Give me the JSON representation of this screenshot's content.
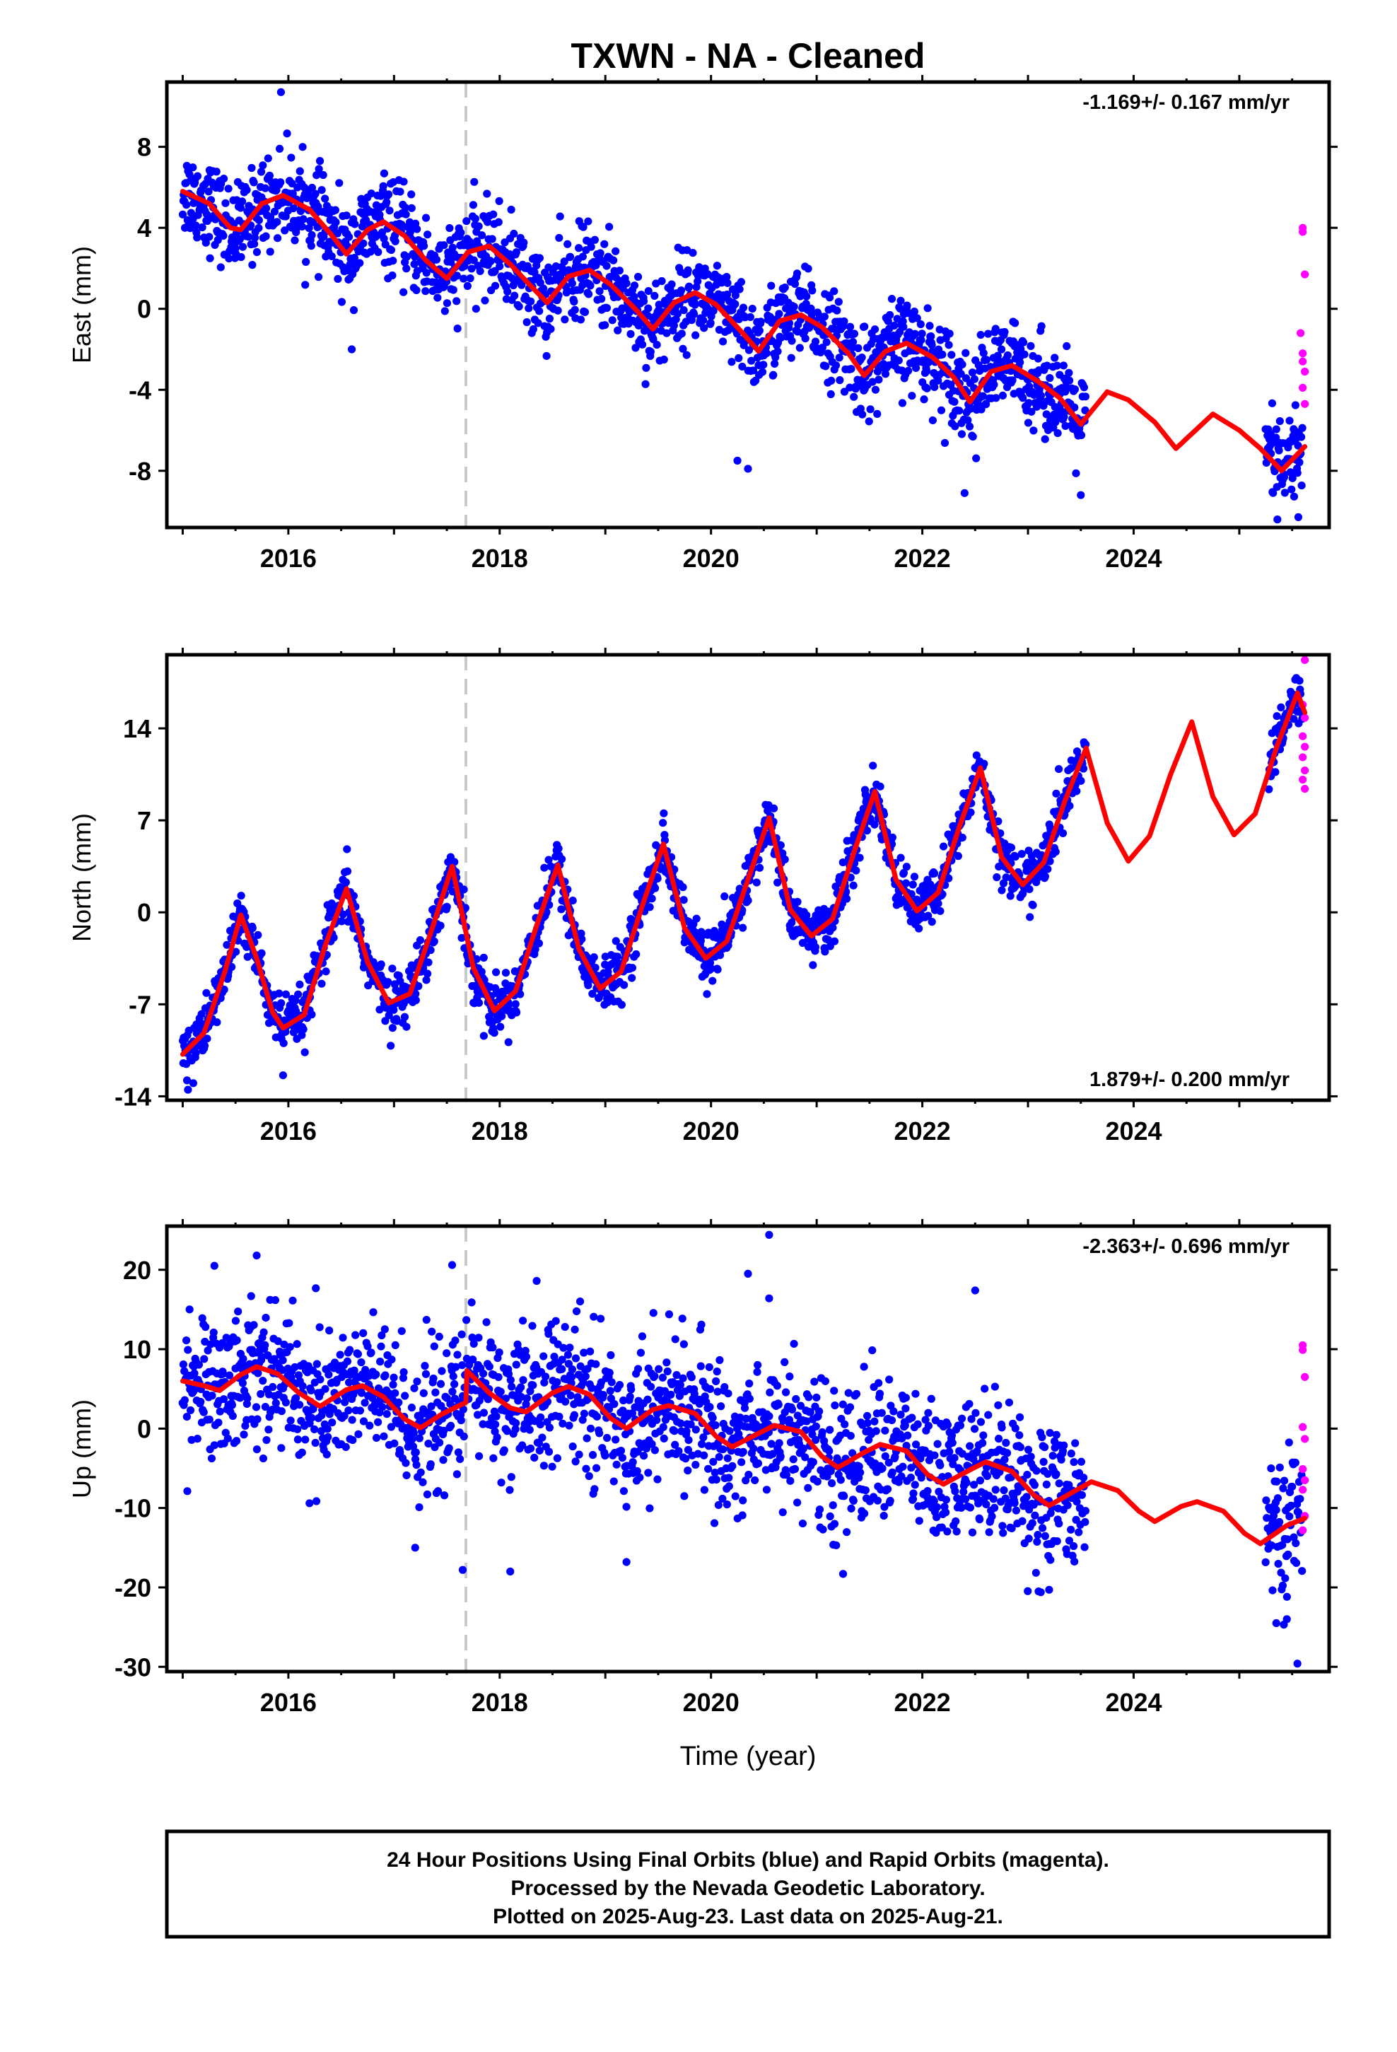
{
  "title": "TXWN  - NA - Cleaned",
  "footer": {
    "lines": [
      "24 Hour Positions Using Final Orbits (blue) and Rapid Orbits (magenta).",
      "Processed by the Nevada Geodetic Laboratory.",
      "Plotted on 2025-Aug-23. Last data on 2025-Aug-21."
    ]
  },
  "colors": {
    "final_orbits": "#0000ff",
    "rapid_orbits": "#ff00ff",
    "model_fit": "#ff0000",
    "event_line": "#c8c8c8"
  },
  "chart_data": [
    {
      "type": "scatter",
      "component": "east",
      "ylabel": "East (mm)",
      "xlabel": "",
      "xlim": [
        2014.85,
        2025.85
      ],
      "ylim": [
        -10.8,
        11.2
      ],
      "x_ticks": [
        "2016",
        "2018",
        "2020",
        "2022",
        "2024"
      ],
      "y_ticks": [
        "8",
        "4",
        "0",
        "-4",
        "-8"
      ],
      "y_tick_values": [
        8,
        4,
        0,
        -4,
        -8
      ],
      "rate_label": "-1.169+/- 0.167 mm/yr",
      "rate_position": "top-right",
      "event_line_x": 2017.68,
      "series": [
        {
          "role": "final-orbits",
          "color": "#0000ff",
          "x_range": [
            2015.0,
            2023.55
          ],
          "noise_sd": 1.1,
          "outliers": [
            [
              2015.93,
              10.7
            ],
            [
              2016.6,
              -2.0
            ],
            [
              2020.35,
              -7.9
            ],
            [
              2020.25,
              -7.5
            ],
            [
              2022.4,
              -9.1
            ],
            [
              2023.5,
              -9.2
            ]
          ]
        },
        {
          "role": "final-orbits",
          "color": "#0000ff",
          "x_range": [
            2025.25,
            2025.6
          ],
          "noise_sd": 1.3
        },
        {
          "role": "rapid-orbits",
          "color": "#ff00ff",
          "points": [
            [
              2025.6,
              4.0
            ],
            [
              2025.6,
              3.8
            ],
            [
              2025.62,
              1.7
            ],
            [
              2025.58,
              -1.2
            ],
            [
              2025.6,
              -2.2
            ],
            [
              2025.6,
              -2.6
            ],
            [
              2025.62,
              -3.1
            ],
            [
              2025.6,
              -3.9
            ],
            [
              2025.62,
              -4.7
            ]
          ]
        }
      ],
      "model_fit": {
        "color": "#ff0000",
        "x_range": [
          2015.0,
          2025.62
        ],
        "curve": [
          [
            2015.0,
            5.8
          ],
          [
            2015.25,
            5.2
          ],
          [
            2015.45,
            4.0
          ],
          [
            2015.55,
            3.9
          ],
          [
            2015.75,
            5.2
          ],
          [
            2015.95,
            5.6
          ],
          [
            2016.2,
            4.9
          ],
          [
            2016.4,
            3.7
          ],
          [
            2016.55,
            2.7
          ],
          [
            2016.75,
            3.9
          ],
          [
            2016.9,
            4.3
          ],
          [
            2017.1,
            3.6
          ],
          [
            2017.3,
            2.4
          ],
          [
            2017.5,
            1.5
          ],
          [
            2017.7,
            2.8
          ],
          [
            2017.9,
            3.1
          ],
          [
            2018.1,
            2.2
          ],
          [
            2018.3,
            1.1
          ],
          [
            2018.45,
            0.3
          ],
          [
            2018.65,
            1.6
          ],
          [
            2018.85,
            1.9
          ],
          [
            2019.05,
            1.2
          ],
          [
            2019.3,
            -0.1
          ],
          [
            2019.45,
            -1.0
          ],
          [
            2019.65,
            0.3
          ],
          [
            2019.85,
            0.8
          ],
          [
            2020.05,
            0.2
          ],
          [
            2020.3,
            -1.2
          ],
          [
            2020.45,
            -2.1
          ],
          [
            2020.65,
            -0.6
          ],
          [
            2020.85,
            -0.3
          ],
          [
            2021.05,
            -0.9
          ],
          [
            2021.3,
            -2.2
          ],
          [
            2021.45,
            -3.3
          ],
          [
            2021.65,
            -2.1
          ],
          [
            2021.85,
            -1.7
          ],
          [
            2022.1,
            -2.4
          ],
          [
            2022.3,
            -3.4
          ],
          [
            2022.45,
            -4.6
          ],
          [
            2022.65,
            -3.1
          ],
          [
            2022.85,
            -2.8
          ],
          [
            2023.1,
            -3.6
          ],
          [
            2023.3,
            -4.4
          ],
          [
            2023.5,
            -5.7
          ],
          [
            2023.75,
            -4.1
          ],
          [
            2023.95,
            -4.5
          ],
          [
            2024.2,
            -5.6
          ],
          [
            2024.4,
            -6.9
          ],
          [
            2024.75,
            -5.2
          ],
          [
            2025.0,
            -6.0
          ],
          [
            2025.2,
            -6.9
          ],
          [
            2025.4,
            -8.0
          ],
          [
            2025.62,
            -6.8
          ]
        ]
      }
    },
    {
      "type": "scatter",
      "component": "north",
      "ylabel": "North (mm)",
      "xlabel": "",
      "xlim": [
        2014.85,
        2025.85
      ],
      "ylim": [
        -14.3,
        19.6
      ],
      "x_ticks": [
        "2016",
        "2018",
        "2020",
        "2022",
        "2024"
      ],
      "y_ticks": [
        "14",
        "7",
        "0",
        "-7",
        "-14"
      ],
      "y_tick_values": [
        14,
        7,
        0,
        -7,
        -14
      ],
      "rate_label": "1.879+/- 0.200 mm/yr",
      "rate_position": "bottom-right",
      "event_line_x": 2017.68,
      "series": [
        {
          "role": "final-orbits",
          "color": "#0000ff",
          "x_range": [
            2015.0,
            2023.55
          ],
          "noise_sd": 1.0,
          "outliers": [
            [
              2015.05,
              -13.5
            ],
            [
              2015.1,
              -13.0
            ],
            [
              2015.95,
              -12.4
            ],
            [
              2017.85,
              -9.4
            ]
          ]
        },
        {
          "role": "final-orbits",
          "color": "#0000ff",
          "x_range": [
            2025.28,
            2025.6
          ],
          "noise_sd": 0.9
        },
        {
          "role": "rapid-orbits",
          "color": "#ff00ff",
          "points": [
            [
              2025.62,
              19.2
            ],
            [
              2025.6,
              15.8
            ],
            [
              2025.62,
              14.8
            ],
            [
              2025.6,
              13.4
            ],
            [
              2025.62,
              12.6
            ],
            [
              2025.6,
              11.8
            ],
            [
              2025.62,
              10.8
            ],
            [
              2025.6,
              10.1
            ],
            [
              2025.62,
              9.4
            ]
          ]
        }
      ],
      "model_fit": {
        "color": "#ff0000",
        "x_range": [
          2015.0,
          2025.62
        ],
        "curve": [
          [
            2015.0,
            -10.8
          ],
          [
            2015.2,
            -9.2
          ],
          [
            2015.4,
            -4.5
          ],
          [
            2015.55,
            -0.2
          ],
          [
            2015.7,
            -3.5
          ],
          [
            2015.85,
            -7.6
          ],
          [
            2015.95,
            -8.8
          ],
          [
            2016.15,
            -7.8
          ],
          [
            2016.35,
            -2.5
          ],
          [
            2016.55,
            1.8
          ],
          [
            2016.75,
            -3.8
          ],
          [
            2016.95,
            -6.9
          ],
          [
            2017.15,
            -6.2
          ],
          [
            2017.35,
            -1.5
          ],
          [
            2017.55,
            3.5
          ],
          [
            2017.75,
            -4.2
          ],
          [
            2017.95,
            -7.5
          ],
          [
            2018.15,
            -6.0
          ],
          [
            2018.35,
            -1.0
          ],
          [
            2018.55,
            3.6
          ],
          [
            2018.75,
            -2.8
          ],
          [
            2018.95,
            -5.8
          ],
          [
            2019.15,
            -4.5
          ],
          [
            2019.35,
            0.5
          ],
          [
            2019.55,
            5.2
          ],
          [
            2019.75,
            -1.2
          ],
          [
            2019.95,
            -3.5
          ],
          [
            2020.15,
            -2.2
          ],
          [
            2020.35,
            2.5
          ],
          [
            2020.55,
            7.2
          ],
          [
            2020.75,
            0.2
          ],
          [
            2020.95,
            -1.8
          ],
          [
            2021.15,
            -0.5
          ],
          [
            2021.35,
            4.5
          ],
          [
            2021.55,
            9.2
          ],
          [
            2021.75,
            2.5
          ],
          [
            2021.95,
            0.1
          ],
          [
            2022.15,
            1.5
          ],
          [
            2022.35,
            6.5
          ],
          [
            2022.55,
            11.0
          ],
          [
            2022.75,
            4.2
          ],
          [
            2022.95,
            2.1
          ],
          [
            2023.15,
            3.8
          ],
          [
            2023.35,
            8.5
          ],
          [
            2023.55,
            12.5
          ],
          [
            2023.75,
            6.8
          ],
          [
            2023.95,
            3.9
          ],
          [
            2024.15,
            5.8
          ],
          [
            2024.35,
            10.5
          ],
          [
            2024.55,
            14.5
          ],
          [
            2024.75,
            8.8
          ],
          [
            2024.95,
            5.9
          ],
          [
            2025.15,
            7.5
          ],
          [
            2025.35,
            12.5
          ],
          [
            2025.55,
            16.7
          ],
          [
            2025.62,
            15.2
          ]
        ]
      }
    },
    {
      "type": "scatter",
      "component": "up",
      "ylabel": "Up (mm)",
      "xlabel": "Time (year)",
      "xlim": [
        2014.85,
        2025.85
      ],
      "ylim": [
        -30.6,
        25.5
      ],
      "x_ticks": [
        "2016",
        "2018",
        "2020",
        "2022",
        "2024"
      ],
      "y_ticks": [
        "20",
        "10",
        "0",
        "-10",
        "-20",
        "-30"
      ],
      "y_tick_values": [
        20,
        10,
        0,
        -10,
        -20,
        -30
      ],
      "rate_label": "-2.363+/- 0.696 mm/yr",
      "rate_position": "top-right",
      "event_line_x": 2017.68,
      "series": [
        {
          "role": "final-orbits",
          "color": "#0000ff",
          "x_range": [
            2015.0,
            2023.55
          ],
          "noise_sd": 4.4,
          "outliers": [
            [
              2015.3,
              20.5
            ],
            [
              2015.7,
              21.8
            ],
            [
              2016.2,
              -9.4
            ],
            [
              2017.2,
              -15.0
            ],
            [
              2017.55,
              20.6
            ],
            [
              2017.65,
              -17.8
            ],
            [
              2018.1,
              -18.0
            ],
            [
              2018.35,
              18.6
            ],
            [
              2019.2,
              -16.8
            ],
            [
              2020.35,
              19.5
            ],
            [
              2020.55,
              24.4
            ],
            [
              2020.55,
              16.4
            ],
            [
              2021.25,
              -18.3
            ],
            [
              2022.5,
              17.4
            ],
            [
              2023.1,
              -20.5
            ],
            [
              2023.2,
              -20.3
            ]
          ]
        },
        {
          "role": "final-orbits",
          "color": "#0000ff",
          "x_range": [
            2025.25,
            2025.6
          ],
          "noise_sd": 4.2,
          "outliers": [
            [
              2025.35,
              -24.5
            ],
            [
              2025.45,
              -24.0
            ],
            [
              2025.55,
              -29.6
            ]
          ]
        },
        {
          "role": "rapid-orbits",
          "color": "#ff00ff",
          "points": [
            [
              2025.6,
              10.5
            ],
            [
              2025.6,
              9.9
            ],
            [
              2025.62,
              6.5
            ],
            [
              2025.6,
              0.2
            ],
            [
              2025.62,
              -1.3
            ],
            [
              2025.6,
              -5.1
            ],
            [
              2025.62,
              -6.5
            ],
            [
              2025.6,
              -7.7
            ],
            [
              2025.62,
              -11.0
            ],
            [
              2025.6,
              -12.8
            ]
          ]
        }
      ],
      "model_fit": {
        "color": "#ff0000",
        "x_range": [
          2015.0,
          2025.62
        ],
        "curve": [
          [
            2015.0,
            6.0
          ],
          [
            2015.2,
            5.4
          ],
          [
            2015.35,
            4.8
          ],
          [
            2015.55,
            6.8
          ],
          [
            2015.7,
            7.8
          ],
          [
            2015.9,
            6.9
          ],
          [
            2016.1,
            4.5
          ],
          [
            2016.3,
            2.8
          ],
          [
            2016.55,
            4.9
          ],
          [
            2016.7,
            5.4
          ],
          [
            2016.9,
            4.0
          ],
          [
            2017.1,
            1.2
          ],
          [
            2017.25,
            0.1
          ],
          [
            2017.45,
            1.8
          ],
          [
            2017.68,
            3.3
          ],
          [
            2017.69,
            7.3
          ],
          [
            2017.9,
            4.5
          ],
          [
            2018.1,
            2.6
          ],
          [
            2018.25,
            2.1
          ],
          [
            2018.5,
            4.5
          ],
          [
            2018.65,
            5.3
          ],
          [
            2018.85,
            4.3
          ],
          [
            2019.05,
            1.3
          ],
          [
            2019.2,
            0.0
          ],
          [
            2019.45,
            2.4
          ],
          [
            2019.6,
            2.9
          ],
          [
            2019.85,
            1.9
          ],
          [
            2020.05,
            -1.0
          ],
          [
            2020.2,
            -2.3
          ],
          [
            2020.45,
            -0.6
          ],
          [
            2020.6,
            0.4
          ],
          [
            2020.85,
            -0.4
          ],
          [
            2021.05,
            -3.5
          ],
          [
            2021.2,
            -4.9
          ],
          [
            2021.45,
            -3.0
          ],
          [
            2021.6,
            -2.0
          ],
          [
            2021.85,
            -2.8
          ],
          [
            2022.05,
            -5.8
          ],
          [
            2022.2,
            -7.0
          ],
          [
            2022.45,
            -5.2
          ],
          [
            2022.6,
            -4.2
          ],
          [
            2022.85,
            -5.4
          ],
          [
            2023.05,
            -8.3
          ],
          [
            2023.2,
            -9.7
          ],
          [
            2023.45,
            -7.8
          ],
          [
            2023.6,
            -6.7
          ],
          [
            2023.85,
            -7.8
          ],
          [
            2024.05,
            -10.4
          ],
          [
            2024.2,
            -11.7
          ],
          [
            2024.45,
            -9.8
          ],
          [
            2024.6,
            -9.2
          ],
          [
            2024.85,
            -10.4
          ],
          [
            2025.05,
            -13.2
          ],
          [
            2025.2,
            -14.5
          ],
          [
            2025.45,
            -12.2
          ],
          [
            2025.62,
            -11.3
          ]
        ]
      }
    }
  ]
}
